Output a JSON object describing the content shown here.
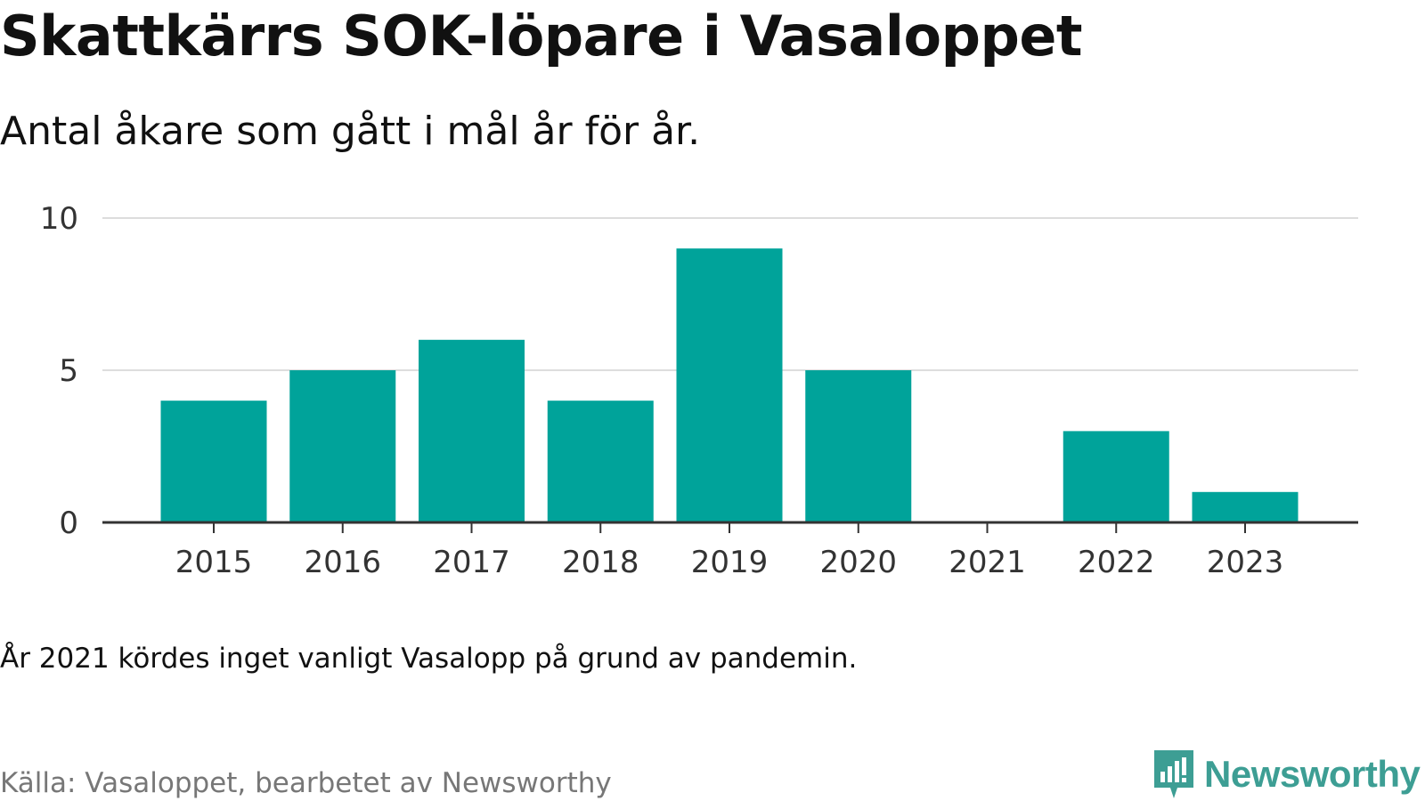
{
  "title": "Skattkärrs SOK-löpare i Vasaloppet",
  "subtitle": "Antal åkare som gått i mål år för år.",
  "note": "År 2021 kördes inget vanligt Vasalopp på grund av pandemin.",
  "source": "Källa: Vasaloppet, bearbetet av Newsworthy",
  "brand": {
    "name": "Newsworthy",
    "color": "#3d9e94",
    "icon": "newsworthy-logo-icon"
  },
  "colors": {
    "bar": "#00a39a",
    "grid": "#dddddd",
    "axis": "#333333"
  },
  "chart_data": {
    "type": "bar",
    "categories": [
      "2015",
      "2016",
      "2017",
      "2018",
      "2019",
      "2020",
      "2021",
      "2022",
      "2023"
    ],
    "values": [
      4,
      5,
      6,
      4,
      9,
      5,
      0,
      3,
      1
    ],
    "yticks": [
      0,
      5,
      10
    ],
    "ylim": [
      0,
      10
    ],
    "grid": true,
    "legend": false
  }
}
